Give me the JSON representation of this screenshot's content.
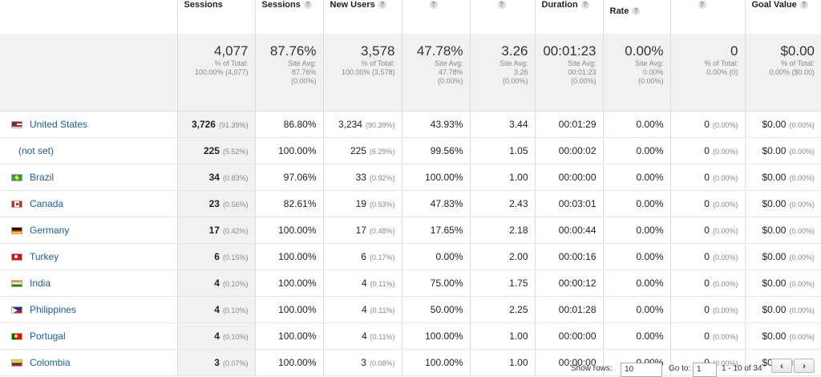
{
  "headers": [
    {
      "label": "",
      "help": false
    },
    {
      "label": "Sessions",
      "help": false
    },
    {
      "label": "Sessions",
      "help": true
    },
    {
      "label": "New Users",
      "help": true
    },
    {
      "label": "",
      "help": true
    },
    {
      "label": "",
      "help": true
    },
    {
      "label": "Duration",
      "help": true
    },
    {
      "label": "Rate",
      "help": true
    },
    {
      "label": "",
      "help": true
    },
    {
      "label": "Goal Value",
      "help": true
    }
  ],
  "totals": [
    {
      "value": "4,077",
      "sub": [
        "% of Total:",
        "100.00% (4,077)"
      ]
    },
    {
      "value": "87.76%",
      "sub": [
        "Site Avg:",
        "87.76%",
        "(0.00%)"
      ]
    },
    {
      "value": "3,578",
      "sub": [
        "% of Total:",
        "100.00% (3,578)"
      ]
    },
    {
      "value": "47.78%",
      "sub": [
        "Site Avg:",
        "47.78%",
        "(0.00%)"
      ]
    },
    {
      "value": "3.26",
      "sub": [
        "Site Avg:",
        "3.26",
        "(0.00%)"
      ]
    },
    {
      "value": "00:01:23",
      "sub": [
        "Site Avg:",
        "00:01:23",
        "(0.00%)"
      ]
    },
    {
      "value": "0.00%",
      "sub": [
        "Site Avg:",
        "0.00%",
        "(0.00%)"
      ]
    },
    {
      "value": "0",
      "sub": [
        "% of Total:",
        "0.00% (0)"
      ]
    },
    {
      "value": "$0.00",
      "sub": [
        "% of Total:",
        "0.00% ($0.00)"
      ]
    }
  ],
  "rows": [
    {
      "flag": "us",
      "country": "United States",
      "sessions": "3,726",
      "sessions_pct": "(91.39%)",
      "new_sessions": "86.80%",
      "new_users": "3,234",
      "new_users_pct": "(90.39%)",
      "bounce": "43.93%",
      "pages": "3.44",
      "duration": "00:01:29",
      "conv": "0.00%",
      "goal": "0",
      "goal_pct": "(0.00%)",
      "value": "$0.00",
      "value_pct": "(0.00%)"
    },
    {
      "flag": "none",
      "country": "(not set)",
      "sessions": "225",
      "sessions_pct": "(5.52%)",
      "new_sessions": "100.00%",
      "new_users": "225",
      "new_users_pct": "(6.29%)",
      "bounce": "99.56%",
      "pages": "1.05",
      "duration": "00:00:02",
      "conv": "0.00%",
      "goal": "0",
      "goal_pct": "(0.00%)",
      "value": "$0.00",
      "value_pct": "(0.00%)"
    },
    {
      "flag": "br",
      "country": "Brazil",
      "sessions": "34",
      "sessions_pct": "(0.83%)",
      "new_sessions": "97.06%",
      "new_users": "33",
      "new_users_pct": "(0.92%)",
      "bounce": "100.00%",
      "pages": "1.00",
      "duration": "00:00:00",
      "conv": "0.00%",
      "goal": "0",
      "goal_pct": "(0.00%)",
      "value": "$0.00",
      "value_pct": "(0.00%)"
    },
    {
      "flag": "ca",
      "country": "Canada",
      "sessions": "23",
      "sessions_pct": "(0.56%)",
      "new_sessions": "82.61%",
      "new_users": "19",
      "new_users_pct": "(0.53%)",
      "bounce": "47.83%",
      "pages": "2.43",
      "duration": "00:03:01",
      "conv": "0.00%",
      "goal": "0",
      "goal_pct": "(0.00%)",
      "value": "$0.00",
      "value_pct": "(0.00%)"
    },
    {
      "flag": "de",
      "country": "Germany",
      "sessions": "17",
      "sessions_pct": "(0.42%)",
      "new_sessions": "100.00%",
      "new_users": "17",
      "new_users_pct": "(0.48%)",
      "bounce": "17.65%",
      "pages": "2.18",
      "duration": "00:00:44",
      "conv": "0.00%",
      "goal": "0",
      "goal_pct": "(0.00%)",
      "value": "$0.00",
      "value_pct": "(0.00%)"
    },
    {
      "flag": "tr",
      "country": "Turkey",
      "sessions": "6",
      "sessions_pct": "(0.15%)",
      "new_sessions": "100.00%",
      "new_users": "6",
      "new_users_pct": "(0.17%)",
      "bounce": "0.00%",
      "pages": "2.00",
      "duration": "00:00:16",
      "conv": "0.00%",
      "goal": "0",
      "goal_pct": "(0.00%)",
      "value": "$0.00",
      "value_pct": "(0.00%)"
    },
    {
      "flag": "in",
      "country": "India",
      "sessions": "4",
      "sessions_pct": "(0.10%)",
      "new_sessions": "100.00%",
      "new_users": "4",
      "new_users_pct": "(0.11%)",
      "bounce": "75.00%",
      "pages": "1.75",
      "duration": "00:00:12",
      "conv": "0.00%",
      "goal": "0",
      "goal_pct": "(0.00%)",
      "value": "$0.00",
      "value_pct": "(0.00%)"
    },
    {
      "flag": "ph",
      "country": "Philippines",
      "sessions": "4",
      "sessions_pct": "(0.10%)",
      "new_sessions": "100.00%",
      "new_users": "4",
      "new_users_pct": "(0.11%)",
      "bounce": "50.00%",
      "pages": "2.25",
      "duration": "00:01:28",
      "conv": "0.00%",
      "goal": "0",
      "goal_pct": "(0.00%)",
      "value": "$0.00",
      "value_pct": "(0.00%)"
    },
    {
      "flag": "pt",
      "country": "Portugal",
      "sessions": "4",
      "sessions_pct": "(0.10%)",
      "new_sessions": "100.00%",
      "new_users": "4",
      "new_users_pct": "(0.11%)",
      "bounce": "100.00%",
      "pages": "1.00",
      "duration": "00:00:00",
      "conv": "0.00%",
      "goal": "0",
      "goal_pct": "(0.00%)",
      "value": "$0.00",
      "value_pct": "(0.00%)"
    },
    {
      "flag": "co",
      "country": "Colombia",
      "sessions": "3",
      "sessions_pct": "(0.07%)",
      "new_sessions": "100.00%",
      "new_users": "3",
      "new_users_pct": "(0.08%)",
      "bounce": "100.00%",
      "pages": "1.00",
      "duration": "00:00:00",
      "conv": "0.00%",
      "goal": "0",
      "goal_pct": "(0.00%)",
      "value": "$0.00",
      "value_pct": "(0.00%)"
    }
  ],
  "footer": {
    "show_rows_label": "Show rows:",
    "show_rows_value": "10",
    "goto_label": "Go to:",
    "goto_value": "1",
    "range_text": "1 - 10 of 34",
    "prev_glyph": "‹",
    "next_glyph": "›"
  }
}
